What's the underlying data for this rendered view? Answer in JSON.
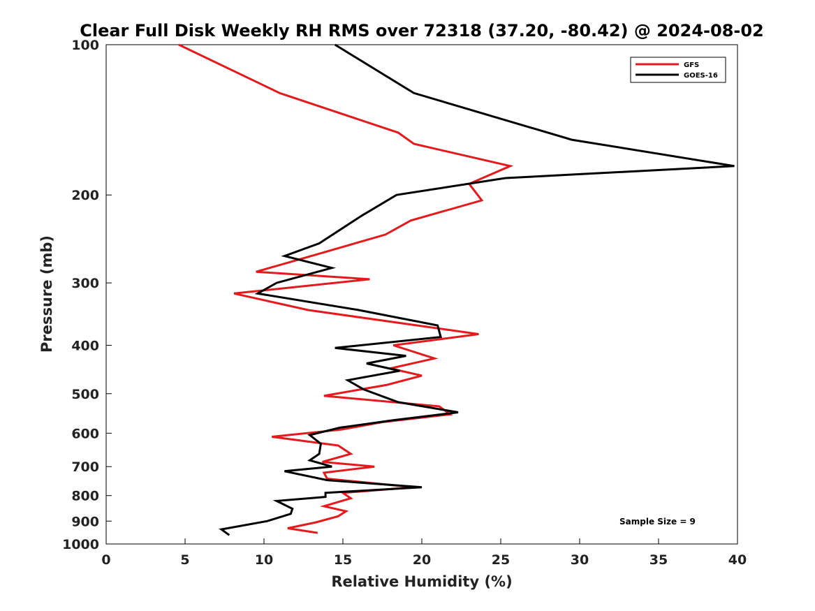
{
  "chart_data": {
    "type": "line",
    "title": "Clear Full Disk Weekly RH RMS over 72318 (37.20, -80.42) @ 2024-08-02",
    "xlabel": "Relative Humidity (%)",
    "ylabel": "Pressure (mb)",
    "xlim": [
      0,
      40
    ],
    "ylim": [
      1000,
      100
    ],
    "yscale": "log",
    "y_reversed": true,
    "x_ticks": [
      "0",
      "5",
      "10",
      "15",
      "20",
      "25",
      "30",
      "35",
      "40"
    ],
    "y_ticks": [
      "100",
      "200",
      "300",
      "400",
      "500",
      "600",
      "700",
      "800",
      "900",
      "1000"
    ],
    "grid": false,
    "legend_position": "top-right",
    "series": [
      {
        "name": "GFS",
        "color": "#e41a1c",
        "points": [
          [
            4.6,
            100
          ],
          [
            11.0,
            125
          ],
          [
            18.5,
            150
          ],
          [
            19.5,
            158
          ],
          [
            25.6,
            175
          ],
          [
            23.0,
            190
          ],
          [
            23.8,
            205
          ],
          [
            19.3,
            225
          ],
          [
            17.7,
            240
          ],
          [
            13.0,
            265
          ],
          [
            9.5,
            285
          ],
          [
            16.7,
            295
          ],
          [
            8.1,
            315
          ],
          [
            12.8,
            340
          ],
          [
            23.6,
            380
          ],
          [
            18.2,
            400
          ],
          [
            20.8,
            425
          ],
          [
            18.0,
            445
          ],
          [
            20.0,
            460
          ],
          [
            17.8,
            480
          ],
          [
            13.8,
            505
          ],
          [
            21.1,
            530
          ],
          [
            21.8,
            550
          ],
          [
            17.5,
            570
          ],
          [
            14.9,
            590
          ],
          [
            10.5,
            610
          ],
          [
            14.7,
            635
          ],
          [
            15.5,
            660
          ],
          [
            13.7,
            685
          ],
          [
            17.0,
            700
          ],
          [
            13.8,
            720
          ],
          [
            14.0,
            740
          ],
          [
            19.5,
            770
          ],
          [
            15.0,
            790
          ],
          [
            15.5,
            810
          ],
          [
            13.8,
            840
          ],
          [
            15.2,
            860
          ],
          [
            14.7,
            880
          ],
          [
            13.3,
            905
          ],
          [
            11.5,
            930
          ],
          [
            13.4,
            950
          ]
        ]
      },
      {
        "name": "GOES-16",
        "color": "#000000",
        "points": [
          [
            14.5,
            100
          ],
          [
            19.5,
            125
          ],
          [
            29.5,
            155
          ],
          [
            39.8,
            175
          ],
          [
            25.3,
            185
          ],
          [
            18.4,
            200
          ],
          [
            16.2,
            220
          ],
          [
            13.5,
            250
          ],
          [
            11.3,
            265
          ],
          [
            14.3,
            280
          ],
          [
            10.8,
            300
          ],
          [
            9.6,
            315
          ],
          [
            16.0,
            340
          ],
          [
            21.0,
            365
          ],
          [
            21.2,
            385
          ],
          [
            14.5,
            405
          ],
          [
            19.0,
            420
          ],
          [
            16.5,
            435
          ],
          [
            18.6,
            450
          ],
          [
            15.3,
            470
          ],
          [
            16.3,
            490
          ],
          [
            18.5,
            520
          ],
          [
            22.3,
            545
          ],
          [
            18.2,
            565
          ],
          [
            14.8,
            585
          ],
          [
            12.9,
            605
          ],
          [
            13.6,
            630
          ],
          [
            13.5,
            660
          ],
          [
            12.9,
            680
          ],
          [
            14.3,
            700
          ],
          [
            11.3,
            715
          ],
          [
            14.0,
            745
          ],
          [
            20.0,
            770
          ],
          [
            13.9,
            790
          ],
          [
            13.9,
            805
          ],
          [
            10.8,
            820
          ],
          [
            11.8,
            850
          ],
          [
            11.7,
            870
          ],
          [
            10.2,
            900
          ],
          [
            7.3,
            935
          ],
          [
            7.8,
            960
          ]
        ]
      }
    ],
    "annotations": [
      {
        "text": "Sample Size = 9",
        "position": "bottom-right"
      }
    ]
  }
}
